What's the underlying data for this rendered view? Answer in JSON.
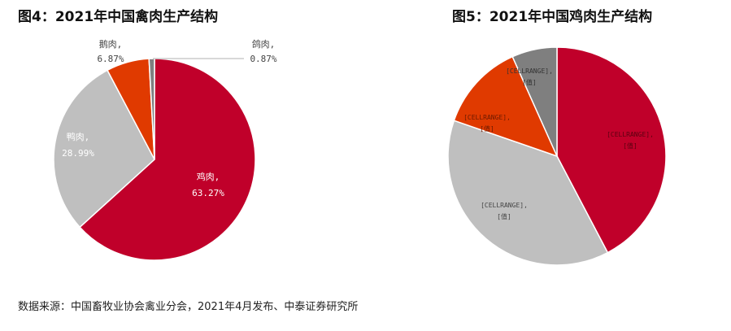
{
  "chart_data": [
    {
      "type": "pie",
      "title": "图4：2021年中国禽肉生产结构",
      "categories": [
        "鸡肉",
        "鸭肉",
        "鹅肉",
        "鸽肉"
      ],
      "values": [
        63.27,
        28.99,
        6.87,
        0.87
      ],
      "value_labels": [
        "63.27%",
        "28.99%",
        "6.87%",
        "0.87%"
      ],
      "label_texts": [
        "鸡肉,",
        "鸭肉,",
        "鹅肉,",
        "鸽肉,"
      ],
      "colors": [
        "#C0002A",
        "#BFBFBF",
        "#E03A00",
        "#7F7F7F"
      ]
    },
    {
      "type": "pie",
      "title": "图5：2021年中国鸡肉生产结构",
      "values": [
        42.3,
        38.0,
        13.0,
        6.7
      ],
      "label_texts": [
        "[CELLRANGE],",
        "[CELLRANGE],",
        "[CELLRANGE],",
        "[CELLRANGE],"
      ],
      "value_labels": [
        "[值]",
        "[值]",
        "[值]",
        "[值]"
      ],
      "colors": [
        "#C0002A",
        "#BFBFBF",
        "#E03A00",
        "#7F7F7F"
      ]
    }
  ],
  "source": "数据来源：中国畜牧业协会禽业分会，2021年4月发布、中泰证券研究所"
}
